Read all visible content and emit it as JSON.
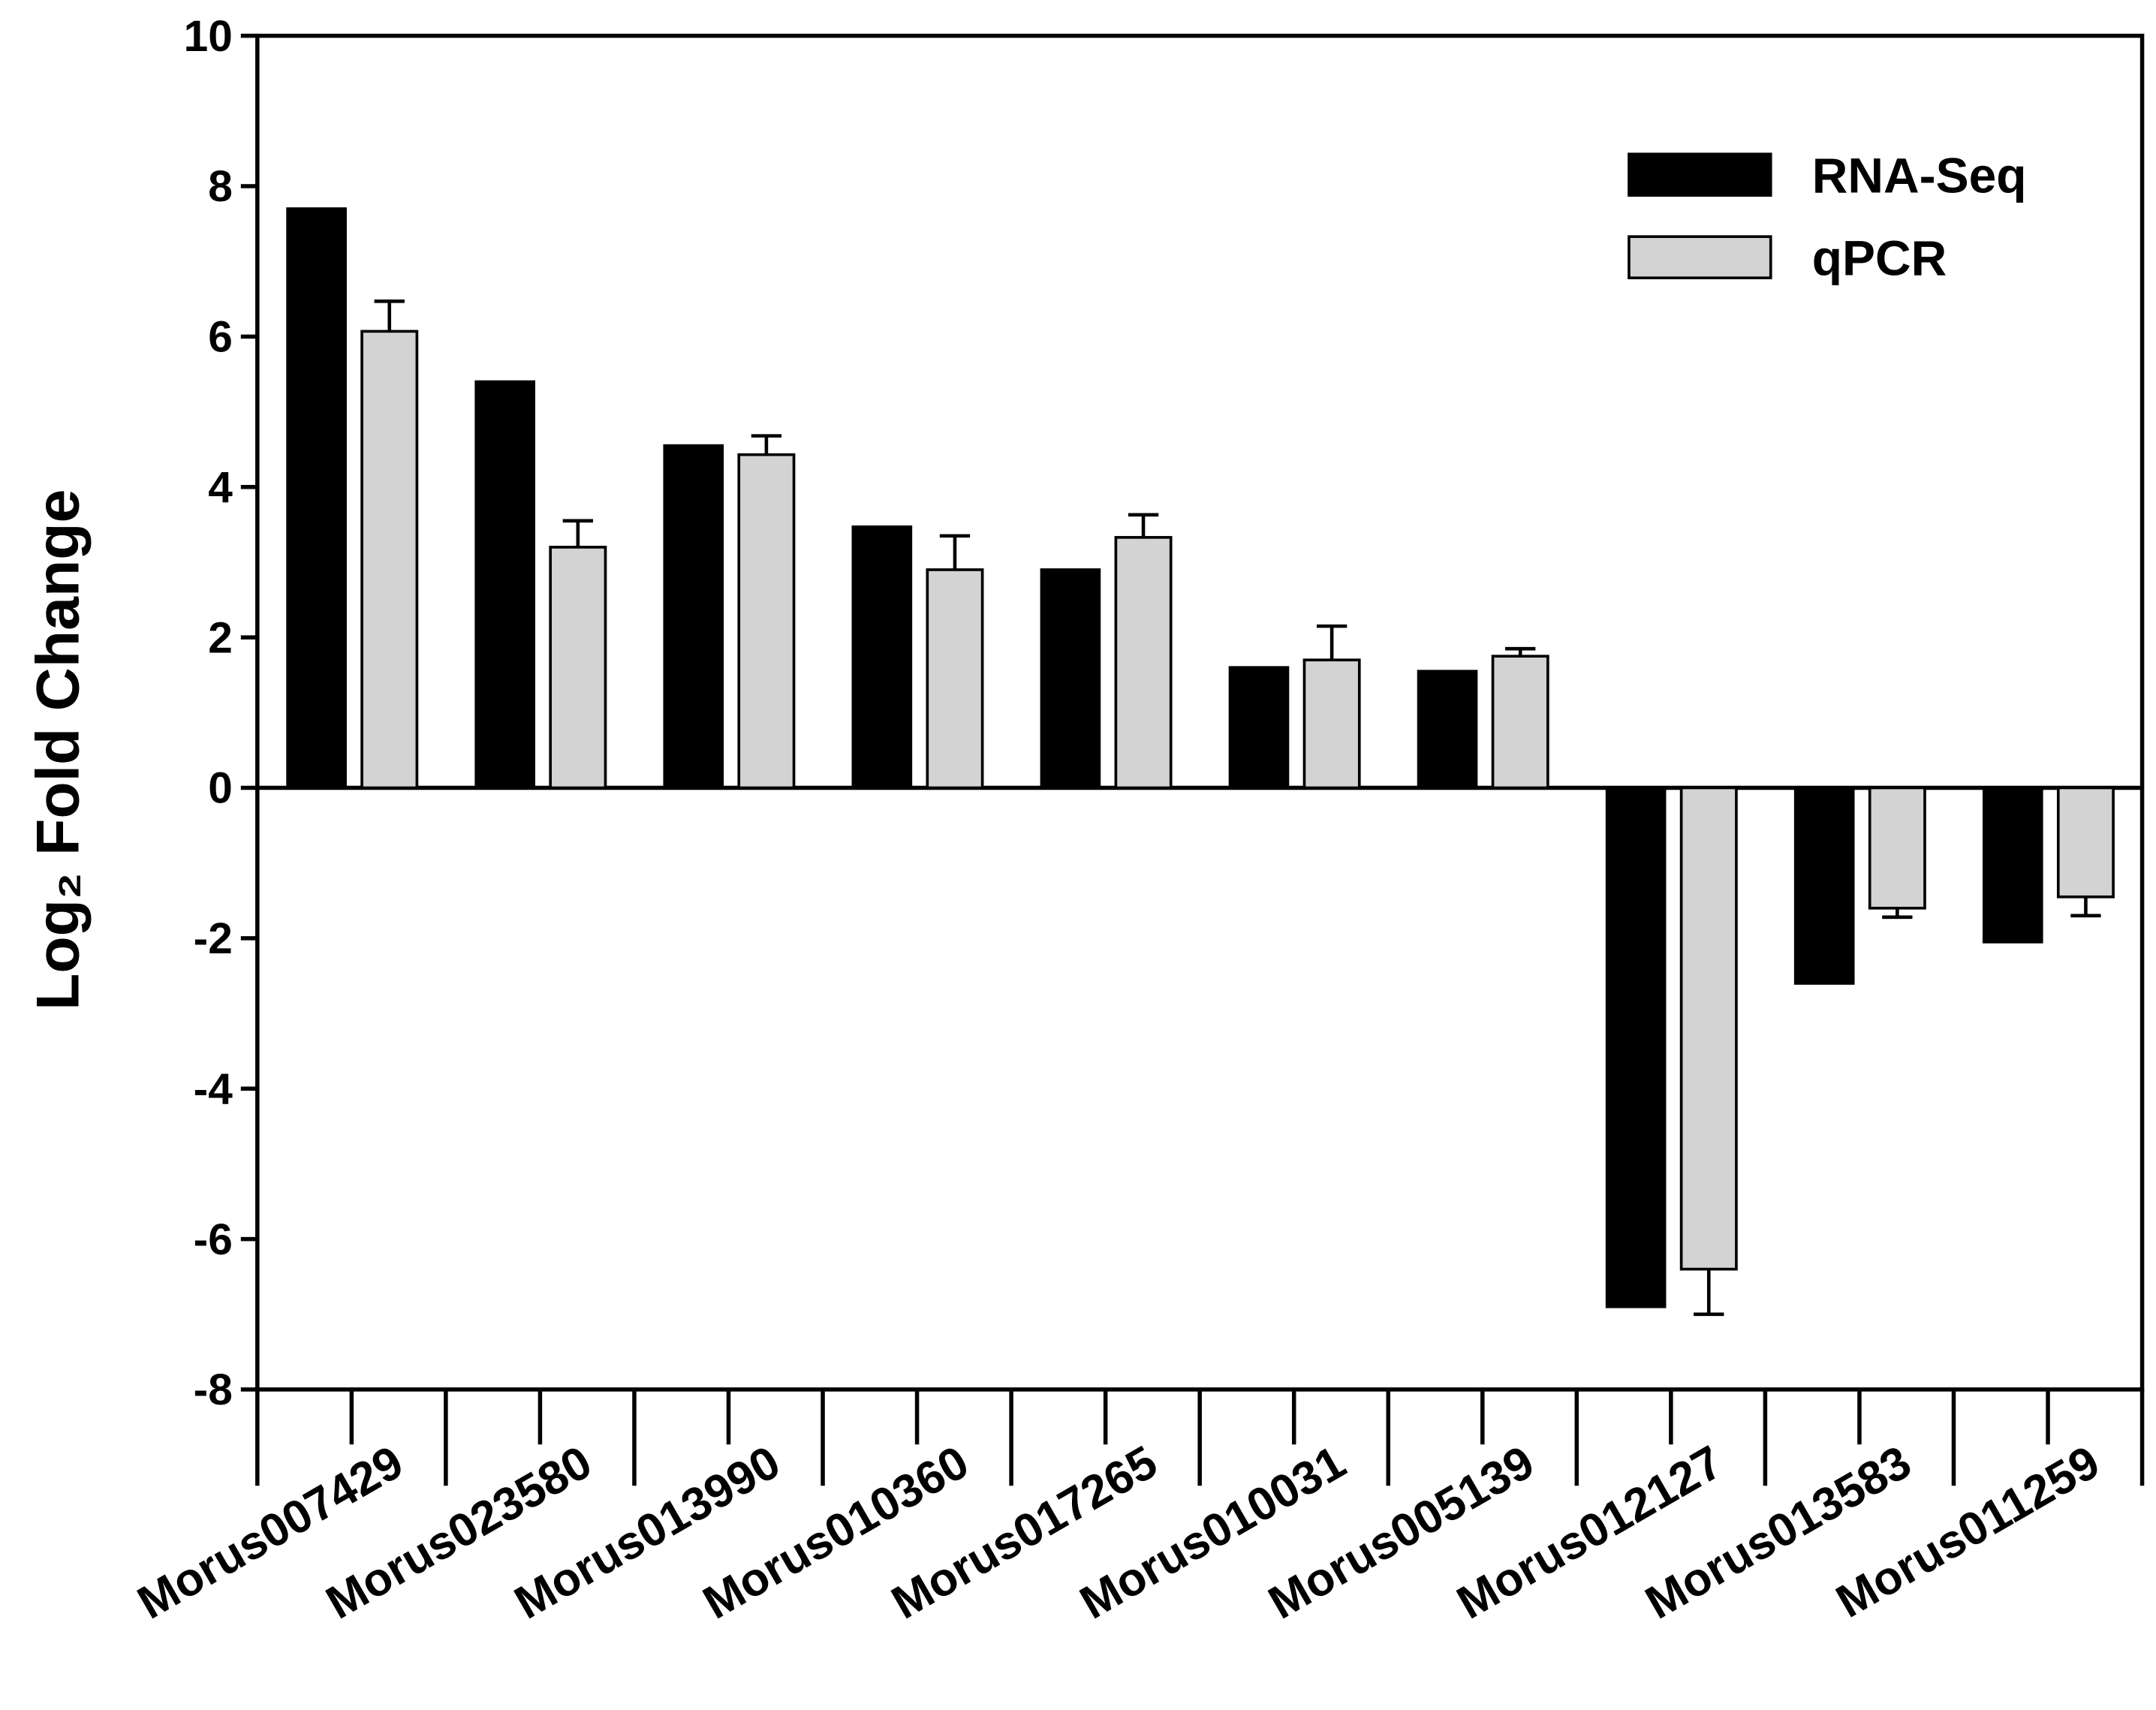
{
  "chart_data": {
    "type": "bar",
    "y_label": "Log₂ Fold Change",
    "categories": [
      "Morus007429",
      "Morus023580",
      "Morus013990",
      "Morus010360",
      "Morus017265",
      "Morus010031",
      "Morus005139",
      "Morus012127",
      "Morus013583",
      "Morus011259"
    ],
    "series": [
      {
        "name": "RNA-Seq",
        "color": "#000000",
        "values": [
          7.7,
          5.4,
          4.55,
          3.47,
          2.9,
          1.6,
          1.55,
          -6.9,
          -2.6,
          -2.05
        ]
      },
      {
        "name": "qPCR",
        "color": "#d3d3d3",
        "values": [
          6.07,
          3.2,
          4.43,
          2.9,
          3.33,
          1.7,
          1.75,
          -6.4,
          -1.6,
          -1.45
        ],
        "errors": [
          0.4,
          0.35,
          0.25,
          0.45,
          0.3,
          0.45,
          0.1,
          0.6,
          0.12,
          0.25
        ]
      }
    ],
    "ylim": [
      -8,
      10
    ],
    "yticks": [
      -8,
      -6,
      -4,
      -2,
      0,
      2,
      4,
      6,
      8,
      10
    ],
    "legend": "upper right",
    "zero_line": true
  }
}
